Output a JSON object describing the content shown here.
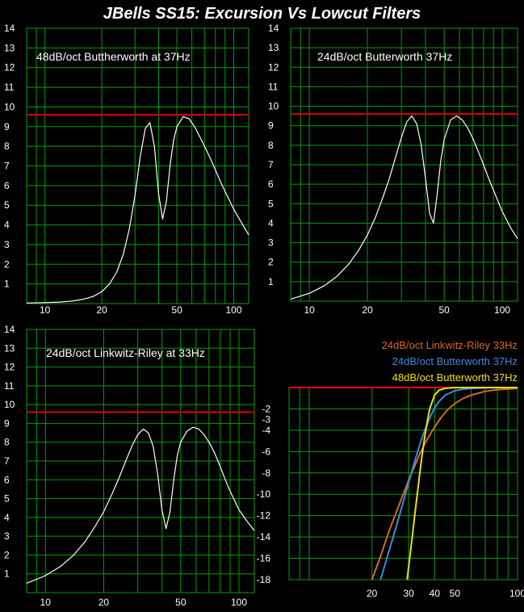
{
  "title": "JBells SS15: Excursion Vs Lowcut Filters",
  "colors": {
    "background": "#000000",
    "grid": "#00a000",
    "limit_line": "#e00000",
    "curve": "#ffffff"
  },
  "chart_data": [
    {
      "type": "line",
      "title": "48dB/oct Buttherworth at 37Hz",
      "xscale": "log",
      "xlim": [
        8,
        120
      ],
      "ylim": [
        0,
        14
      ],
      "xticks": [
        10,
        20,
        50,
        100
      ],
      "yticks": [
        1,
        2,
        3,
        4,
        5,
        6,
        7,
        8,
        9,
        10,
        11,
        12,
        13,
        14
      ],
      "limit_y": 9.6,
      "series": [
        {
          "x": [
            8,
            10,
            12,
            14,
            16,
            18,
            20,
            22,
            24,
            26,
            28,
            30,
            32,
            34,
            36,
            38,
            40,
            42,
            44,
            46,
            48,
            50,
            54,
            58,
            62,
            66,
            70,
            75,
            80,
            85,
            90,
            100,
            110,
            120
          ],
          "values": [
            0.03,
            0.05,
            0.08,
            0.13,
            0.22,
            0.36,
            0.6,
            1.0,
            1.6,
            2.5,
            3.8,
            5.5,
            7.5,
            8.9,
            9.2,
            8.0,
            5.6,
            4.3,
            5.2,
            7.0,
            8.3,
            9.0,
            9.5,
            9.4,
            9.0,
            8.5,
            8.0,
            7.4,
            6.8,
            6.2,
            5.7,
            4.8,
            4.1,
            3.5
          ]
        }
      ]
    },
    {
      "type": "line",
      "title": "24dB/oct Butterworth 37Hz",
      "xscale": "log",
      "xlim": [
        8,
        120
      ],
      "ylim": [
        0,
        14
      ],
      "xticks": [
        10,
        20,
        50,
        100
      ],
      "yticks": [
        1,
        2,
        3,
        4,
        5,
        6,
        7,
        8,
        9,
        10,
        11,
        12,
        13,
        14
      ],
      "limit_y": 9.6,
      "series": [
        {
          "x": [
            8,
            10,
            12,
            14,
            16,
            18,
            20,
            22,
            24,
            26,
            28,
            30,
            32,
            34,
            36,
            38,
            40,
            42,
            44,
            46,
            48,
            50,
            54,
            58,
            62,
            66,
            70,
            75,
            80,
            85,
            90,
            100,
            110,
            120
          ],
          "values": [
            0.1,
            0.4,
            0.8,
            1.3,
            1.9,
            2.6,
            3.4,
            4.3,
            5.3,
            6.3,
            7.4,
            8.4,
            9.2,
            9.5,
            9.1,
            8.0,
            6.3,
            4.5,
            4.0,
            5.5,
            7.2,
            8.3,
            9.3,
            9.5,
            9.3,
            8.9,
            8.4,
            7.7,
            7.0,
            6.3,
            5.7,
            4.6,
            3.8,
            3.2
          ]
        }
      ]
    },
    {
      "type": "line",
      "title": "24dB/oct Linkwitz-Riley at 33Hz",
      "xscale": "log",
      "xlim": [
        8,
        120
      ],
      "ylim": [
        0,
        14
      ],
      "xticks": [
        10,
        20,
        50,
        100
      ],
      "yticks": [
        1,
        2,
        3,
        4,
        5,
        6,
        7,
        8,
        9,
        10,
        11,
        12,
        13,
        14
      ],
      "limit_y": 9.6,
      "series": [
        {
          "x": [
            8,
            10,
            12,
            14,
            16,
            18,
            20,
            22,
            24,
            26,
            28,
            30,
            32,
            34,
            36,
            38,
            40,
            42,
            44,
            46,
            48,
            50,
            54,
            58,
            62,
            66,
            70,
            75,
            80,
            85,
            90,
            100,
            110,
            120
          ],
          "values": [
            0.5,
            0.9,
            1.4,
            2.0,
            2.7,
            3.5,
            4.3,
            5.2,
            6.1,
            7.0,
            7.8,
            8.4,
            8.7,
            8.5,
            7.8,
            6.3,
            4.4,
            3.4,
            4.3,
            6.0,
            7.3,
            8.0,
            8.6,
            8.8,
            8.7,
            8.4,
            8.0,
            7.4,
            6.7,
            6.0,
            5.4,
            4.4,
            3.8,
            3.3
          ]
        }
      ]
    },
    {
      "type": "line",
      "xscale": "log",
      "xlim": [
        8,
        100
      ],
      "ylim": [
        -18,
        0
      ],
      "xticks": [
        20,
        30,
        40,
        50,
        100
      ],
      "yticks": [
        -2,
        -3,
        -4,
        -6,
        -8,
        -10,
        -12,
        -14,
        -16,
        -18
      ],
      "limit_y": 0,
      "series": [
        {
          "name": "24dB/oct Linkwitz-Riley 33Hz",
          "color": "#d46a1e",
          "x": [
            20,
            22,
            24,
            26,
            28,
            30,
            32,
            34,
            36,
            38,
            40,
            43,
            46,
            50,
            55,
            60,
            70,
            80,
            100
          ],
          "values": [
            -18,
            -15.8,
            -13.6,
            -11.8,
            -10.2,
            -8.7,
            -7.4,
            -6.2,
            -5.2,
            -4.4,
            -3.7,
            -2.8,
            -2.1,
            -1.5,
            -1.0,
            -0.7,
            -0.35,
            -0.2,
            -0.08
          ]
        },
        {
          "name": "24dB/oct Butterworth 37Hz",
          "color": "#3a8de0",
          "x": [
            22,
            24,
            26,
            28,
            30,
            32,
            34,
            36,
            38,
            40,
            42,
            45,
            50,
            55,
            60,
            70,
            80,
            100
          ],
          "values": [
            -18,
            -15.5,
            -13.2,
            -11.0,
            -8.9,
            -7.0,
            -5.3,
            -3.9,
            -2.8,
            -1.9,
            -1.3,
            -0.7,
            -0.3,
            -0.15,
            -0.08,
            -0.03,
            -0.01,
            0
          ]
        },
        {
          "name": "48dB/oct Butterworth 37Hz",
          "color": "#f0e000",
          "x": [
            29.5,
            31,
            32,
            33,
            34,
            35,
            36,
            37,
            38,
            40,
            42,
            45,
            50,
            60,
            80,
            100
          ],
          "values": [
            -18,
            -14.5,
            -12.2,
            -10.0,
            -7.9,
            -6.0,
            -4.4,
            -3.0,
            -1.9,
            -0.7,
            -0.25,
            -0.07,
            -0.01,
            0,
            0,
            0
          ]
        }
      ]
    }
  ]
}
